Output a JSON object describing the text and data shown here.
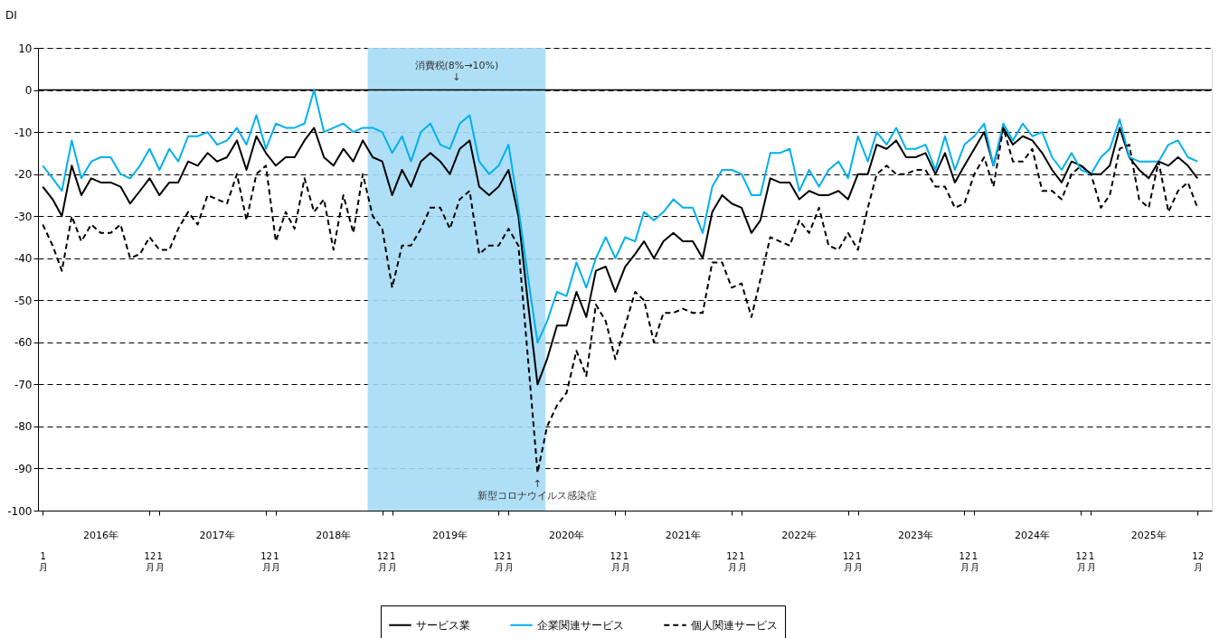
{
  "chart_data": {
    "type": "line",
    "ylabel": "DI",
    "x": [
      "2016-01",
      "2016-02",
      "2016-03",
      "2016-04",
      "2016-05",
      "2016-06",
      "2016-07",
      "2016-08",
      "2016-09",
      "2016-10",
      "2016-11",
      "2016-12",
      "2017-01",
      "2017-02",
      "2017-03",
      "2017-04",
      "2017-05",
      "2017-06",
      "2017-07",
      "2017-08",
      "2017-09",
      "2017-10",
      "2017-11",
      "2017-12",
      "2018-01",
      "2018-02",
      "2018-03",
      "2018-04",
      "2018-05",
      "2018-06",
      "2018-07",
      "2018-08",
      "2018-09",
      "2018-10",
      "2018-11",
      "2018-12",
      "2019-01",
      "2019-02",
      "2019-03",
      "2019-04",
      "2019-05",
      "2019-06",
      "2019-07",
      "2019-08",
      "2019-09",
      "2019-10",
      "2019-11",
      "2019-12",
      "2020-01",
      "2020-02",
      "2020-03",
      "2020-04",
      "2020-05",
      "2020-06",
      "2020-07",
      "2020-08",
      "2020-09",
      "2020-10",
      "2020-11",
      "2020-12",
      "2021-01",
      "2021-02",
      "2021-03",
      "2021-04",
      "2021-05",
      "2021-06",
      "2021-07",
      "2021-08",
      "2021-09",
      "2021-10",
      "2021-11",
      "2021-12",
      "2022-01",
      "2022-02",
      "2022-03",
      "2022-04",
      "2022-05",
      "2022-06",
      "2022-07",
      "2022-08",
      "2022-09",
      "2022-10",
      "2022-11",
      "2022-12",
      "2023-01",
      "2023-02",
      "2023-03",
      "2023-04",
      "2023-05",
      "2023-06",
      "2023-07",
      "2023-08",
      "2023-09",
      "2023-10",
      "2023-11",
      "2023-12",
      "2024-01",
      "2024-02",
      "2024-03",
      "2024-04",
      "2024-05",
      "2024-06",
      "2024-07",
      "2024-08",
      "2024-09",
      "2024-10",
      "2024-11",
      "2024-12",
      "2025-01",
      "2025-02",
      "2025-03",
      "2025-04",
      "2025-05",
      "2025-06",
      "2025-07",
      "2025-08",
      "2025-09",
      "2025-10",
      "2025-11",
      "2025-12"
    ],
    "series": [
      {
        "name": "サービス業",
        "color": "#000000",
        "line_style": "solid",
        "values": [
          -23,
          -26,
          -30,
          -18,
          -25,
          -21,
          -22,
          -22,
          -23,
          -27,
          -24,
          -21,
          -25,
          -22,
          -22,
          -17,
          -18,
          -15,
          -17,
          -16,
          -12,
          -19,
          -11,
          -15,
          -18,
          -16,
          -16,
          -12,
          -9,
          -16,
          -18,
          -14,
          -17,
          -12,
          -16,
          -17,
          -25,
          -19,
          -23,
          -17,
          -15,
          -17,
          -20,
          -14,
          -12,
          -23,
          -25,
          -23,
          -19,
          -30,
          -50,
          -70,
          -64,
          -56,
          -56,
          -48,
          -54,
          -43,
          -42,
          -48,
          -42,
          -39,
          -36,
          -40,
          -36,
          -34,
          -36,
          -36,
          -40,
          -29,
          -25,
          -27,
          -28,
          -34,
          -31,
          -21,
          -22,
          -22,
          -26,
          -24,
          -25,
          -25,
          -24,
          -26,
          -20,
          -20,
          -13,
          -14,
          -12,
          -16,
          -16,
          -15,
          -20,
          -15,
          -22,
          -18,
          -14,
          -10,
          -18,
          -9,
          -13,
          -11,
          -12,
          -15,
          -19,
          -22,
          -17,
          -18,
          -20,
          -20,
          -18,
          -9,
          -16,
          -19,
          -21,
          -17,
          -18,
          -16,
          -18,
          -21
        ]
      },
      {
        "name": "企業関連サービス",
        "color": "#00b0f0",
        "line_style": "solid",
        "values": [
          -18,
          -21,
          -24,
          -12,
          -21,
          -17,
          -16,
          -16,
          -20,
          -21,
          -18,
          -14,
          -19,
          -14,
          -17,
          -11,
          -11,
          -10,
          -13,
          -12,
          -9,
          -13,
          -6,
          -14,
          -8,
          -9,
          -9,
          -8,
          0,
          -10,
          -9,
          -8,
          -10,
          -9,
          -9,
          -10,
          -15,
          -11,
          -17,
          -10,
          -8,
          -13,
          -14,
          -8,
          -6,
          -17,
          -20,
          -18,
          -13,
          -28,
          -44,
          -60,
          -55,
          -48,
          -49,
          -41,
          -47,
          -40,
          -35,
          -40,
          -35,
          -36,
          -29,
          -31,
          -29,
          -26,
          -28,
          -28,
          -34,
          -23,
          -19,
          -19,
          -20,
          -25,
          -25,
          -15,
          -15,
          -14,
          -24,
          -19,
          -23,
          -19,
          -17,
          -21,
          -11,
          -17,
          -10,
          -13,
          -9,
          -14,
          -14,
          -13,
          -19,
          -11,
          -19,
          -13,
          -11,
          -8,
          -18,
          -8,
          -12,
          -8,
          -11,
          -10,
          -16,
          -19,
          -15,
          -19,
          -20,
          -16,
          -14,
          -7,
          -16,
          -17,
          -17,
          -17,
          -13,
          -12,
          -16,
          -17
        ]
      },
      {
        "name": "個人関連サービス",
        "color": "#000000",
        "line_style": "dashed",
        "values": [
          -32,
          -37,
          -43,
          -30,
          -36,
          -32,
          -34,
          -34,
          -32,
          -40,
          -39,
          -35,
          -38,
          -38,
          -33,
          -29,
          -32,
          -25,
          -26,
          -27,
          -20,
          -31,
          -20,
          -18,
          -36,
          -29,
          -33,
          -21,
          -29,
          -26,
          -38,
          -25,
          -34,
          -20,
          -30,
          -33,
          -47,
          -37,
          -37,
          -33,
          -28,
          -28,
          -33,
          -26,
          -24,
          -39,
          -37,
          -37,
          -33,
          -37,
          -63,
          -91,
          -80,
          -75,
          -72,
          -62,
          -68,
          -51,
          -55,
          -64,
          -56,
          -48,
          -50,
          -60,
          -53,
          -53,
          -52,
          -53,
          -53,
          -41,
          -41,
          -47,
          -46,
          -54,
          -45,
          -35,
          -36,
          -37,
          -31,
          -34,
          -28,
          -37,
          -38,
          -34,
          -38,
          -28,
          -20,
          -18,
          -20,
          -20,
          -19,
          -19,
          -23,
          -23,
          -28,
          -27,
          -20,
          -16,
          -23,
          -9,
          -17,
          -17,
          -14,
          -24,
          -24,
          -26,
          -20,
          -18,
          -20,
          -28,
          -25,
          -14,
          -13,
          -26,
          -28,
          -17,
          -29,
          -24,
          -22,
          -28
        ]
      }
    ],
    "xlim": [
      "2015-12-17",
      "2026-01-15"
    ],
    "xticks": [
      {
        "value": "2016-01",
        "label": "1月"
      },
      {
        "value": "2016-12",
        "label": "12月"
      },
      {
        "value": "2017-01",
        "label": "1月"
      },
      {
        "value": "2017-12",
        "label": "12月"
      },
      {
        "value": "2018-01",
        "label": "1月"
      },
      {
        "value": "2018-12",
        "label": "12月"
      },
      {
        "value": "2019-01",
        "label": "1月"
      },
      {
        "value": "2019-12",
        "label": "12月"
      },
      {
        "value": "2020-01",
        "label": "1月"
      },
      {
        "value": "2020-12",
        "label": "12月"
      },
      {
        "value": "2021-01",
        "label": "1月"
      },
      {
        "value": "2021-12",
        "label": "12月"
      },
      {
        "value": "2022-01",
        "label": "1月"
      },
      {
        "value": "2022-12",
        "label": "12月"
      },
      {
        "value": "2023-01",
        "label": "1月"
      },
      {
        "value": "2023-12",
        "label": "12月"
      },
      {
        "value": "2024-01",
        "label": "1月"
      },
      {
        "value": "2024-12",
        "label": "12月"
      },
      {
        "value": "2025-01",
        "label": "1月"
      },
      {
        "value": "2025-12",
        "label": "12月"
      }
    ],
    "x2lim": [
      "2015-12-17",
      "2026-01-15"
    ],
    "x2ticks": [
      {
        "value": "2016-07",
        "label": "2016年"
      },
      {
        "value": "2017-07",
        "label": "2017年"
      },
      {
        "value": "2018-07",
        "label": "2018年"
      },
      {
        "value": "2019-07",
        "label": "2019年"
      },
      {
        "value": "2020-07",
        "label": "2020年"
      },
      {
        "value": "2021-07",
        "label": "2021年"
      },
      {
        "value": "2022-07",
        "label": "2022年"
      },
      {
        "value": "2023-07",
        "label": "2023年"
      },
      {
        "value": "2024-07",
        "label": "2024年"
      },
      {
        "value": "2025-07",
        "label": "2025年"
      }
    ],
    "ylim": [
      -100,
      10
    ],
    "yticks": [
      -100,
      -90,
      -80,
      -70,
      -60,
      -50,
      -40,
      -30,
      -20,
      -10,
      0,
      10
    ],
    "grid": "y",
    "ref_lines": [
      {
        "axis": "y",
        "value": 0,
        "line_style": "solid",
        "color": "#000000"
      }
    ],
    "bands": [
      {
        "axis": "x",
        "from": "2018-10-16",
        "to": "2020-04-26",
        "color": "#a6dcf5"
      }
    ],
    "annotations": [
      "消費税(8%→10%)\n↓",
      {
        "text": "↑\n新型コロナウイルス感染症",
        "x": "2020-04",
        "y": -91
      }
    ],
    "legend": "bottom"
  }
}
